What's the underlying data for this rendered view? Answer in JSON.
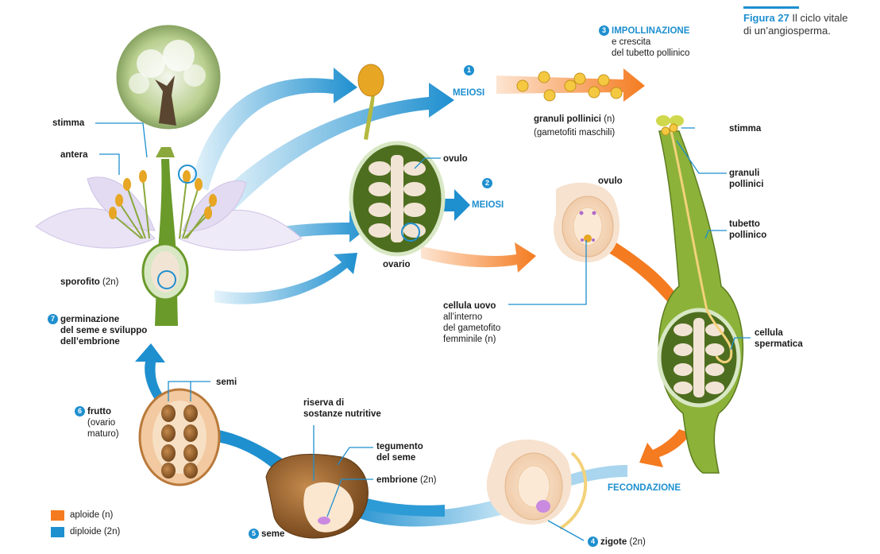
{
  "figure": {
    "number": "Figura 27",
    "caption_line1": "Il ciclo vitale",
    "caption_line2": "di un’angiosperma."
  },
  "steps": [
    {
      "n": "1",
      "label": "MEIOSI"
    },
    {
      "n": "2",
      "label": "MEIOSI"
    },
    {
      "n": "3",
      "label": "IMPOLLINAZIONE",
      "sub1": "e crescita",
      "sub2": "del tubetto pollinico"
    },
    {
      "n": "4",
      "label": "zigote",
      "suffix": "(2n)"
    },
    {
      "n": "5",
      "label": "seme"
    },
    {
      "n": "6",
      "label": "frutto",
      "sub1": "(ovario",
      "sub2": "maturo)"
    },
    {
      "n": "7",
      "label": "germinazione",
      "sub1": "del seme e sviluppo",
      "sub2": "dell’embrione"
    }
  ],
  "labels": {
    "stimma_left": "stimma",
    "antera": "antera",
    "sporofito": "sporofito",
    "sporofito_ploidy": "(2n)",
    "ovulo_top": "ovulo",
    "ovario": "ovario",
    "granuli_pollinici": "granuli pollinici",
    "granuli_ploidy": "(n)",
    "gametofiti_maschili": "(gametofiti maschili)",
    "ovulo_right": "ovulo",
    "cellula_uovo_1": "cellula uovo",
    "cellula_uovo_2": "all’interno",
    "cellula_uovo_3": "del gametofito",
    "cellula_uovo_4": "femminile (n)",
    "stimma_right": "stimma",
    "granuli_1": "granuli",
    "granuli_2": "pollinici",
    "tubetto_1": "tubetto",
    "tubetto_2": "pollinico",
    "cellula_1": "cellula",
    "cellula_2": "spermatica",
    "fecondazione": "FECONDAZIONE",
    "semi": "semi",
    "riserva_1": "riserva di",
    "riserva_2": "sostanze nutritive",
    "tegumento_1": "tegumento",
    "tegumento_2": "del seme",
    "embrione": "embrione",
    "embrione_ploidy": "(2n)"
  },
  "legend": [
    {
      "label": "aploide (n)",
      "color": "#f47b20"
    },
    {
      "label": "diploide (2n)",
      "color": "#1e8fcf"
    }
  ],
  "colors": {
    "haploid": "#f47b20",
    "diploid": "#1e8fcf",
    "plant_green": "#6a9a2a",
    "petal": "#e9e3f5",
    "seed_brown": "#8a5a2b"
  }
}
